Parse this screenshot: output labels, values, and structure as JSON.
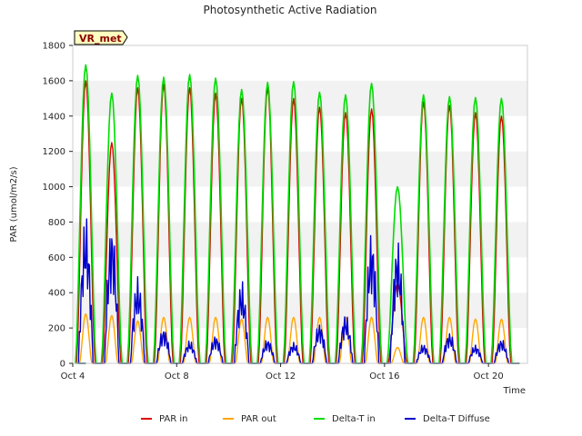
{
  "chart_data": {
    "type": "line",
    "title": "Photosynthetic Active Radiation",
    "xlabel": "Time",
    "ylabel": "PAR (umol/m2/s)",
    "xlim": [
      4,
      21.5
    ],
    "ylim": [
      0,
      1800
    ],
    "x_ticks": [
      {
        "value": 4,
        "label": "Oct 4"
      },
      {
        "value": 8,
        "label": "Oct 8"
      },
      {
        "value": 12,
        "label": "Oct 12"
      },
      {
        "value": 16,
        "label": "Oct 16"
      },
      {
        "value": 20,
        "label": "Oct 20"
      }
    ],
    "y_ticks": [
      0,
      200,
      400,
      600,
      800,
      1000,
      1200,
      1400,
      1600,
      1800
    ],
    "grid": "horizontal bands",
    "badge": "VR_met",
    "legend_position": "bottom",
    "day_start": 4.5,
    "days": 17,
    "series": [
      {
        "name": "PAR in",
        "color": "#dd0000",
        "peaks": [
          1600,
          1250,
          1560,
          1580,
          1560,
          1530,
          1500,
          1560,
          1500,
          1450,
          1420,
          1440,
          450,
          1480,
          1460,
          1420,
          1400
        ]
      },
      {
        "name": "PAR out",
        "color": "#ffa500",
        "peaks": [
          280,
          270,
          240,
          260,
          260,
          260,
          250,
          260,
          260,
          260,
          260,
          260,
          90,
          260,
          260,
          250,
          250
        ]
      },
      {
        "name": "Delta-T in",
        "color": "#00dd00",
        "peaks": [
          1690,
          1530,
          1630,
          1620,
          1635,
          1615,
          1550,
          1590,
          1595,
          1535,
          1520,
          1585,
          1000,
          1520,
          1510,
          1505,
          1500
        ]
      },
      {
        "name": "Delta-T Diffuse",
        "color": "#0000cc",
        "peaks": [
          840,
          800,
          490,
          200,
          130,
          160,
          470,
          140,
          120,
          230,
          280,
          750,
          700,
          110,
          175,
          105,
          140
        ]
      }
    ]
  }
}
